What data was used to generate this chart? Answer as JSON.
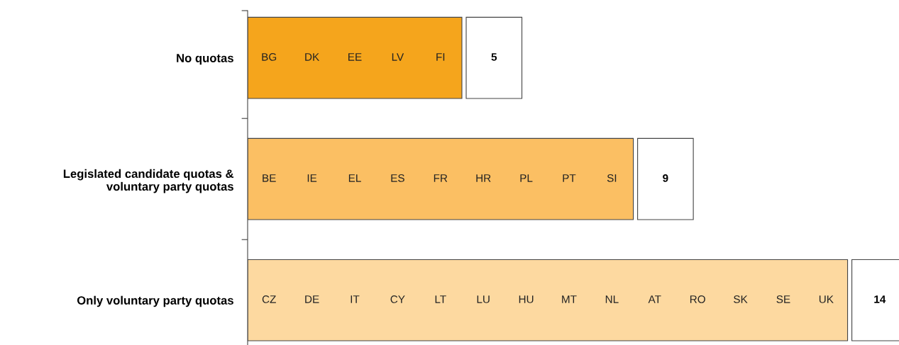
{
  "chart_data": {
    "type": "bar",
    "orientation": "horizontal",
    "categories": [
      "No quotas",
      "Legislated candidate quotas &\nvoluntary party quotas",
      "Only voluntary party quotas"
    ],
    "values": [
      5,
      9,
      14
    ],
    "colors": [
      "#f5a51c",
      "#fbbf63",
      "#fdd9a0"
    ],
    "data_labels": true,
    "grid": false,
    "legend": false,
    "tick_labels": "y",
    "annotations": [
      "BG",
      "DK",
      "EE",
      "LV",
      "FI",
      "BE",
      "IE",
      "EL",
      "ES",
      "FR",
      "HR",
      "PL",
      "PT",
      "SI",
      "CZ",
      "DE",
      "IT",
      "CY",
      "LT",
      "LU",
      "HU",
      "MT",
      "NL",
      "AT",
      "RO",
      "SK",
      "SE",
      "UK"
    ]
  }
}
